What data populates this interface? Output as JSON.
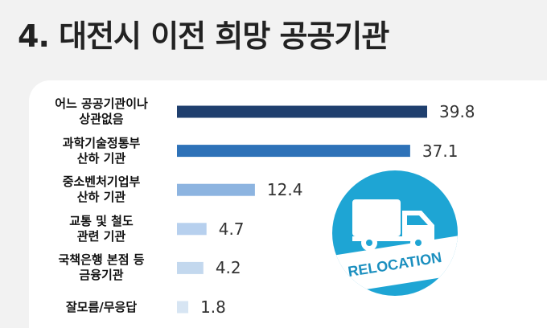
{
  "header": {
    "title": "4. 대전시 이전 희망 공공기관"
  },
  "badge": {
    "text": "RELOCATION",
    "icon": "truck-icon",
    "color": "#1ea5d4"
  },
  "chart_data": {
    "type": "bar",
    "orientation": "horizontal",
    "title": "4. 대전시 이전 희망 공공기관",
    "categories": [
      "어느 공공기관이나\n상관없음",
      "과학기술정통부\n산하 기관",
      "중소벤처기업부\n산하 기관",
      "교통 및 철도\n관련 기관",
      "국책은행 본점 등\n금융기관",
      "잘모름/무응답"
    ],
    "values": [
      39.8,
      37.1,
      12.4,
      4.7,
      4.2,
      1.8
    ],
    "value_labels": [
      "39.8",
      "37.1",
      "12.4",
      "4.7",
      "4.2",
      "1.8"
    ],
    "colors": [
      "#1f3f6e",
      "#2e72b8",
      "#8db4e0",
      "#b7d0ee",
      "#c3d8ee",
      "#d7e5f3"
    ],
    "xlim": [
      0,
      39.8
    ],
    "grid": false,
    "legend": "none"
  }
}
